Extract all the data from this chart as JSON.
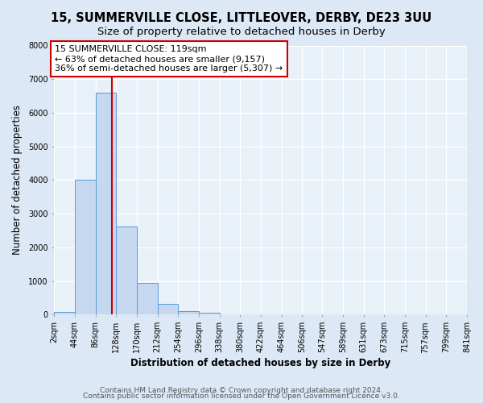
{
  "title": "15, SUMMERVILLE CLOSE, LITTLEOVER, DERBY, DE23 3UU",
  "subtitle": "Size of property relative to detached houses in Derby",
  "xlabel": "Distribution of detached houses by size in Derby",
  "ylabel": "Number of detached properties",
  "bar_left_edges": [
    2,
    44,
    86,
    128,
    170,
    212,
    254,
    296,
    338,
    380,
    422,
    464,
    506,
    547,
    589,
    631,
    673,
    715,
    757,
    799
  ],
  "bar_heights": [
    70,
    4000,
    6600,
    2620,
    950,
    310,
    110,
    65,
    0,
    0,
    0,
    0,
    0,
    0,
    0,
    0,
    0,
    0,
    0,
    0
  ],
  "bin_width": 42,
  "bar_color": "#c5d8f0",
  "bar_edge_color": "#5b9bd5",
  "tick_labels": [
    "2sqm",
    "44sqm",
    "86sqm",
    "128sqm",
    "170sqm",
    "212sqm",
    "254sqm",
    "296sqm",
    "338sqm",
    "380sqm",
    "422sqm",
    "464sqm",
    "506sqm",
    "547sqm",
    "589sqm",
    "631sqm",
    "673sqm",
    "715sqm",
    "757sqm",
    "799sqm",
    "841sqm"
  ],
  "vline_x": 119,
  "vline_color": "#cc0000",
  "ylim": [
    0,
    8000
  ],
  "yticks": [
    0,
    1000,
    2000,
    3000,
    4000,
    5000,
    6000,
    7000,
    8000
  ],
  "annotation_text": "15 SUMMERVILLE CLOSE: 119sqm\n← 63% of detached houses are smaller (9,157)\n36% of semi-detached houses are larger (5,307) →",
  "annotation_box_color": "#ffffff",
  "annotation_box_edge": "#cc0000",
  "footer_line1": "Contains HM Land Registry data © Crown copyright and database right 2024.",
  "footer_line2": "Contains public sector information licensed under the Open Government Licence v3.0.",
  "bg_color": "#dce8f5",
  "plot_bg_color": "#e8f0f8",
  "grid_color": "#ffffff",
  "title_fontsize": 10.5,
  "subtitle_fontsize": 9.5,
  "axis_label_fontsize": 8.5,
  "tick_fontsize": 7,
  "annotation_fontsize": 8,
  "footer_fontsize": 6.5
}
